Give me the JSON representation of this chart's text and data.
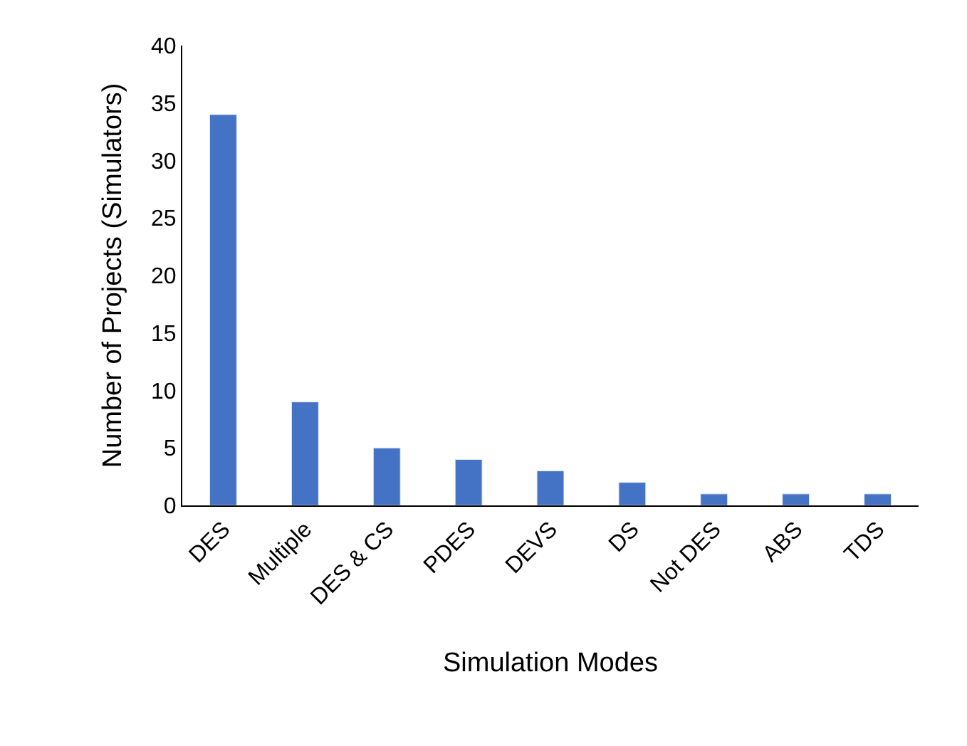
{
  "chart_data": {
    "type": "bar",
    "xlabel": "Simulation Modes",
    "ylabel": "Number of Projects (Simulators)",
    "categories": [
      "DES",
      "Multiple",
      "DES & CS",
      "PDES",
      "DEVS",
      "DS",
      "Not DES",
      "ABS",
      "TDS"
    ],
    "values": [
      34,
      9,
      5,
      4,
      3,
      2,
      1,
      1,
      1
    ],
    "color": "#4472c4",
    "ylim": [
      0,
      40
    ],
    "yticks": [
      0,
      5,
      10,
      15,
      20,
      25,
      30,
      35,
      40
    ]
  }
}
